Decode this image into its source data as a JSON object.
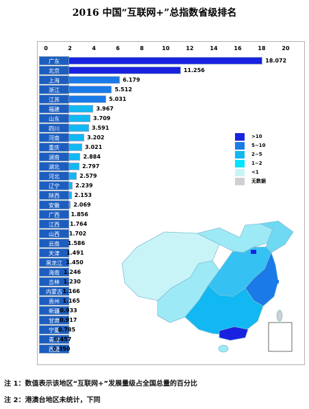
{
  "title": "2016 中国“互联网+”总指数省级排名",
  "chart_data": {
    "type": "bar",
    "orientation": "horizontal",
    "x_ticks": [
      "0",
      "2",
      "4",
      "6",
      "8",
      "10",
      "12",
      "14",
      "16",
      "18",
      "20"
    ],
    "xlim": [
      0,
      20
    ],
    "categories": [
      "广东",
      "北京",
      "上海",
      "浙江",
      "江苏",
      "福建",
      "山东",
      "四川",
      "河南",
      "重庆",
      "湖南",
      "湖北",
      "河北",
      "辽宁",
      "陕西",
      "安徽",
      "广西",
      "江西",
      "山西",
      "云南",
      "天津",
      "黑龙江",
      "海南",
      "吉林",
      "内蒙古",
      "贵州",
      "新疆",
      "甘肃",
      "宁夏",
      "青海",
      "西藏"
    ],
    "values": [
      18.072,
      11.256,
      6.179,
      5.512,
      5.031,
      3.967,
      3.709,
      3.591,
      3.202,
      3.021,
      2.884,
      2.797,
      2.579,
      2.239,
      2.153,
      2.069,
      1.856,
      1.764,
      1.702,
      1.586,
      1.491,
      1.45,
      1.246,
      1.23,
      1.166,
      1.165,
      0.933,
      0.917,
      0.785,
      0.457,
      0.35
    ],
    "value_labels": [
      "18.072",
      "11.256",
      "6.179",
      "5.512",
      "5.031",
      "3.967",
      "3.709",
      "3.591",
      "3.202",
      "3.021",
      "2.884",
      "2.797",
      "2.579",
      "2.239",
      "2.153",
      "2.069",
      "1.856",
      "1.764",
      "1.702",
      "1.586",
      "1.491",
      "1.450",
      "1.246",
      "1.230",
      "1.166",
      "1.165",
      "0.933",
      "0.917",
      "0.785",
      "0.457",
      "0.350"
    ],
    "legend": [
      {
        "label": ">10",
        "color": "#1a22e0"
      },
      {
        "label": "5~10",
        "color": "#1a7ae8"
      },
      {
        "label": "2~5",
        "color": "#11b8f2"
      },
      {
        "label": "1~2",
        "color": "#00e5ff"
      },
      {
        "label": "<1",
        "color": "#c8f4f8"
      },
      {
        "label": "无数据",
        "color": "#cfcfd4"
      }
    ],
    "legend_position": "right"
  },
  "notes": [
    "注 1：数值表示该地区“互联网+”发展量级占全国总量的百分比",
    "注 2：港澳台地区未统计，下同"
  ]
}
